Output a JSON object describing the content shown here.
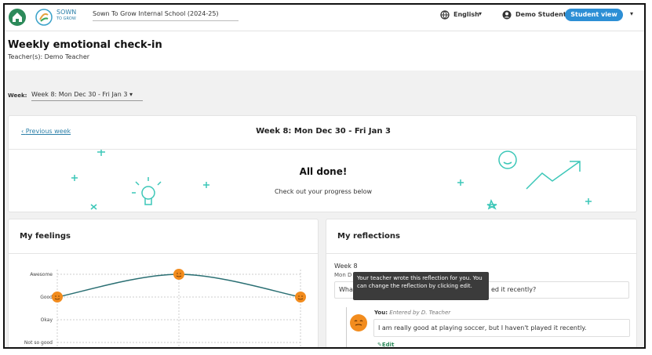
{
  "header": {
    "brand": "SOWN",
    "brand_sub": "TO GROW",
    "school": "Sown To Grow Internal School (2024-25)",
    "language": "English",
    "user": "Demo Student",
    "view_button": "Student view"
  },
  "page": {
    "title": "Weekly emotional check-in",
    "teachers": "Teacher(s): Demo Teacher",
    "week_label": "Week:",
    "week_select": "Week 8: Mon Dec 30 - Fri Jan 3"
  },
  "summary": {
    "previous": "Previous week",
    "heading": "Week 8: Mon Dec 30 - Fri Jan 3",
    "done": "All done!",
    "subtitle": "Check out your progress below"
  },
  "feelings": {
    "title": "My feelings",
    "chart": {
      "type": "line",
      "color": "#2a6f73",
      "yticks": [
        "Awesome",
        "Good",
        "Okay",
        "Not so good"
      ],
      "values": [
        "Good",
        "Awesome",
        "Good"
      ],
      "grid": true
    }
  },
  "reflections": {
    "title": "My reflections",
    "week": "Week 8",
    "date_start": "Mon D",
    "question_start": "Wha",
    "question_end": "ed it recently?",
    "tooltip": "Your teacher wrote this reflection for you. You can change the reflection by clicking edit.",
    "you": "You:",
    "entered_by": "Entered by D. Teacher",
    "answer": "I am really good at playing soccer, but I haven't played it recently.",
    "edit": "Edit"
  }
}
